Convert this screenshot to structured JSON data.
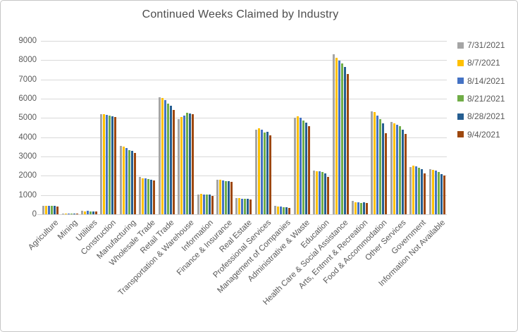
{
  "chart_data": {
    "type": "bar",
    "title": "Continued Weeks Claimed by Industry",
    "xlabel": "",
    "ylabel": "",
    "ylim": [
      0,
      9000
    ],
    "ytick_interval": 1000,
    "grid": "horizontal",
    "legend_position": "right",
    "categories": [
      "Agriculture",
      "Mining",
      "Utilities",
      "Construction",
      "Manufacturing",
      "Wholesale Trade",
      "Retail Trade",
      "Transportation & Warehouse",
      "Information",
      "Finance & Insurance",
      "Real Estate",
      "Professional Services",
      "Management of Companies",
      "Administrative & Waste",
      "Education",
      "Health Care & Social Assistance",
      "Arts, Entmnt & Recreation",
      "Food & Accommodation",
      "Other Services",
      "Government",
      "Information Not Available"
    ],
    "series": [
      {
        "name": "7/31/2021",
        "color": "#A5A5A5",
        "values": [
          450,
          20,
          170,
          5190,
          3550,
          1950,
          6080,
          4950,
          1030,
          1780,
          850,
          4400,
          430,
          5020,
          2250,
          8290,
          680,
          5350,
          4780,
          2450,
          2330
        ]
      },
      {
        "name": "8/7/2021",
        "color": "#FFC000",
        "values": [
          450,
          20,
          160,
          5180,
          3500,
          1880,
          6050,
          5050,
          1060,
          1790,
          830,
          4460,
          410,
          5100,
          2240,
          8120,
          630,
          5320,
          4720,
          2510,
          2290
        ]
      },
      {
        "name": "8/14/2021",
        "color": "#4472C4",
        "values": [
          440,
          20,
          170,
          5150,
          3430,
          1850,
          5920,
          5130,
          1030,
          1740,
          810,
          4400,
          390,
          5010,
          2230,
          7970,
          610,
          5110,
          4650,
          2490,
          2250
        ]
      },
      {
        "name": "8/21/2021",
        "color": "#70AD47",
        "values": [
          440,
          20,
          160,
          5130,
          3330,
          1820,
          5740,
          5250,
          1010,
          1720,
          800,
          4240,
          380,
          4870,
          2180,
          7820,
          600,
          4930,
          4560,
          2410,
          2190
        ]
      },
      {
        "name": "8/28/2021",
        "color": "#255E91",
        "values": [
          440,
          20,
          160,
          5080,
          3280,
          1800,
          5620,
          5230,
          1020,
          1730,
          800,
          4280,
          380,
          4740,
          2130,
          7650,
          610,
          4710,
          4380,
          2340,
          2100
        ]
      },
      {
        "name": "9/4/2021",
        "color": "#9E480E",
        "values": [
          420,
          20,
          150,
          5050,
          3190,
          1740,
          5410,
          5210,
          950,
          1680,
          770,
          4080,
          340,
          4560,
          1950,
          7280,
          580,
          4200,
          4160,
          2130,
          2000
        ]
      }
    ]
  }
}
